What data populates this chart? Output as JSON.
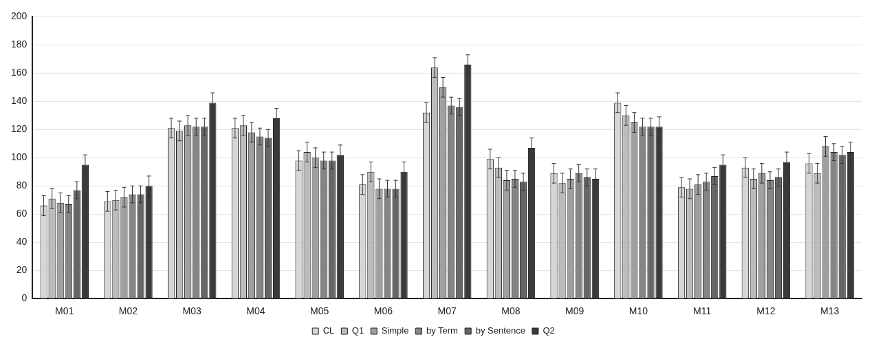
{
  "chart_data": {
    "type": "bar",
    "categories": [
      "M01",
      "M02",
      "M03",
      "M04",
      "M05",
      "M06",
      "M07",
      "M08",
      "M09",
      "M10",
      "M11",
      "M12",
      "M13"
    ],
    "series": [
      {
        "name": "CL",
        "color": "#d6d6d6",
        "values": [
          66,
          69,
          121,
          121,
          98,
          81,
          132,
          99,
          89,
          139,
          79,
          93,
          96
        ],
        "errors": [
          7,
          7,
          7,
          7,
          7,
          7,
          7,
          7,
          7,
          7,
          7,
          7,
          7
        ]
      },
      {
        "name": "Q1",
        "color": "#bcbcbc",
        "values": [
          71,
          70,
          119,
          123,
          104,
          90,
          164,
          93,
          82,
          130,
          78,
          85,
          89
        ],
        "errors": [
          7,
          7,
          7,
          7,
          7,
          7,
          7,
          7,
          7,
          7,
          7,
          7,
          7
        ]
      },
      {
        "name": "Simple",
        "color": "#a0a0a0",
        "values": [
          68,
          72,
          123,
          118,
          100,
          78,
          150,
          84,
          85,
          125,
          81,
          89,
          108
        ],
        "errors": [
          7,
          7,
          7,
          7,
          7,
          7,
          7,
          7,
          7,
          7,
          7,
          7,
          7
        ]
      },
      {
        "name": "by Term",
        "color": "#858585",
        "values": [
          67,
          74,
          122,
          115,
          98,
          78,
          137,
          85,
          89,
          122,
          83,
          84,
          104
        ],
        "errors": [
          6,
          6,
          6,
          6,
          6,
          6,
          6,
          6,
          6,
          6,
          6,
          6,
          6
        ]
      },
      {
        "name": "by Sentence",
        "color": "#666666",
        "values": [
          77,
          74,
          122,
          114,
          98,
          78,
          136,
          83,
          86,
          122,
          87,
          86,
          102
        ],
        "errors": [
          6,
          6,
          6,
          6,
          6,
          6,
          6,
          6,
          6,
          6,
          6,
          6,
          6
        ]
      },
      {
        "name": "Q2",
        "color": "#3a3a3a",
        "values": [
          95,
          80,
          139,
          128,
          102,
          90,
          166,
          107,
          85,
          122,
          95,
          97,
          104
        ],
        "errors": [
          7,
          7,
          7,
          7,
          7,
          7,
          7,
          7,
          7,
          7,
          7,
          7,
          7
        ]
      }
    ],
    "ylim": [
      0,
      200
    ],
    "yticks": [
      0,
      20,
      40,
      60,
      80,
      100,
      120,
      140,
      160,
      180,
      200
    ],
    "grid": "y",
    "legend": "bottom"
  }
}
